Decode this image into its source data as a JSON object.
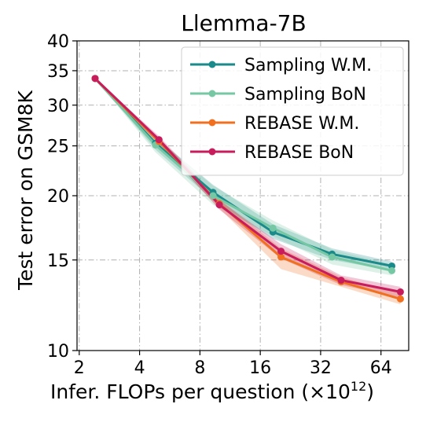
{
  "chart_data": {
    "type": "line",
    "title": "Llemma-7B",
    "xlabel": "Infer. FLOPs per question (×10",
    "xlabel_exponent": "12",
    "xlabel_suffix": ")",
    "ylabel": "Test error on GSM8K",
    "x_scale": "log2",
    "y_scale": "log",
    "xlim": [
      1.95,
      88
    ],
    "ylim": [
      10,
      40
    ],
    "x_ticks": [
      2,
      4,
      8,
      16,
      32,
      64
    ],
    "x_tick_labels": [
      "2",
      "4",
      "8",
      "16",
      "32",
      "64"
    ],
    "y_ticks": [
      10,
      15,
      20,
      25,
      30,
      35,
      40
    ],
    "y_tick_labels": [
      "10",
      "15",
      "20",
      "25",
      "30",
      "35",
      "40"
    ],
    "grid": true,
    "legend_position": "top-right",
    "series": [
      {
        "name": "Sampling W.M.",
        "color": "#1a8a8a",
        "x": [
          2.4,
          4.8,
          9.3,
          18.5,
          36.5,
          72.5
        ],
        "y": [
          33.8,
          25.3,
          20.3,
          17.0,
          15.4,
          14.6
        ],
        "band_low": [
          33.8,
          24.6,
          19.6,
          16.5,
          15.0,
          14.3
        ],
        "band_high": [
          33.8,
          26.0,
          21.0,
          17.6,
          15.8,
          14.9
        ]
      },
      {
        "name": "Sampling BoN",
        "color": "#76c8a4",
        "x": [
          2.4,
          4.8,
          9.3,
          18.5,
          36.5,
          72.5
        ],
        "y": [
          33.8,
          25.1,
          20.0,
          17.3,
          15.2,
          14.3
        ],
        "band_low": [
          33.8,
          24.3,
          19.2,
          16.7,
          14.7,
          14.0
        ],
        "band_high": [
          33.8,
          26.0,
          20.9,
          17.9,
          15.7,
          14.7
        ]
      },
      {
        "name": "REBASE W.M.",
        "color": "#f07020",
        "x": [
          2.4,
          5.0,
          10.0,
          20.3,
          40.5,
          80.0
        ],
        "y": [
          33.8,
          25.5,
          19.3,
          15.2,
          13.6,
          12.6
        ],
        "band_low": [
          33.8,
          25.1,
          18.9,
          14.4,
          13.3,
          12.3
        ],
        "band_high": [
          33.8,
          25.9,
          19.7,
          15.8,
          13.9,
          12.9
        ]
      },
      {
        "name": "REBASE BoN",
        "color": "#c81c5c",
        "x": [
          2.4,
          5.0,
          10.0,
          20.3,
          40.5,
          80.0
        ],
        "y": [
          33.8,
          25.7,
          19.2,
          15.6,
          13.7,
          13.0
        ],
        "band_low": [
          33.8,
          25.3,
          18.8,
          15.1,
          13.4,
          12.7
        ],
        "band_high": [
          33.8,
          26.1,
          19.6,
          16.1,
          14.0,
          13.3
        ]
      }
    ]
  }
}
